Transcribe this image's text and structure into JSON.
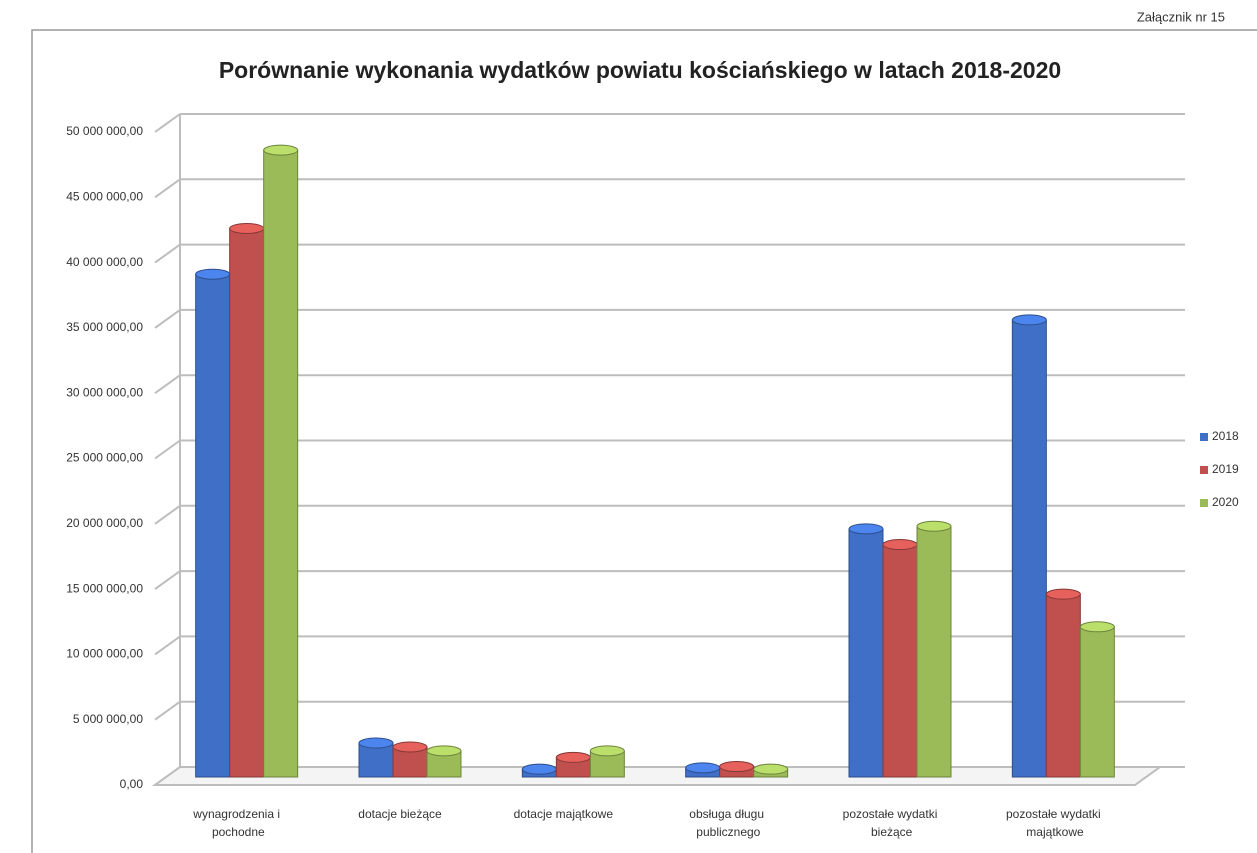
{
  "chart_data": {
    "type": "bar",
    "title": "Porównanie wykonania wydatków powiatu kościańskiego w latach 2018-2020",
    "annotation": "Załącznik nr 15",
    "categories": [
      "wynagrodzenia i pochodne",
      "dotacje bieżące",
      "dotacje majątkowe",
      "obsługa długu publicznego",
      "pozostałe wydatki bieżące",
      "pozostałe wydatki majątkowe"
    ],
    "series": [
      {
        "name": "2018",
        "color": "#3f6fc6",
        "values": [
          38500000,
          2600000,
          600000,
          700000,
          19000000,
          35000000
        ]
      },
      {
        "name": "2019",
        "color": "#c0504d",
        "values": [
          42000000,
          2300000,
          1500000,
          800000,
          17800000,
          14000000
        ]
      },
      {
        "name": "2020",
        "color": "#9bbb59",
        "values": [
          48000000,
          2000000,
          2000000,
          600000,
          19200000,
          11500000
        ]
      }
    ],
    "ylim": [
      0,
      50000000
    ],
    "yticks": [
      {
        "value": 0,
        "label": "0,00"
      },
      {
        "value": 5000000,
        "label": "5 000 000,00"
      },
      {
        "value": 10000000,
        "label": "10 000 000,00"
      },
      {
        "value": 15000000,
        "label": "15 000 000,00"
      },
      {
        "value": 20000000,
        "label": "20 000 000,00"
      },
      {
        "value": 25000000,
        "label": "25 000 000,00"
      },
      {
        "value": 30000000,
        "label": "30 000 000,00"
      },
      {
        "value": 35000000,
        "label": "35 000 000,00"
      },
      {
        "value": 40000000,
        "label": "40 000 000,00"
      },
      {
        "value": 45000000,
        "label": "45 000 000,00"
      },
      {
        "value": 50000000,
        "label": "50 000 000,00"
      }
    ],
    "grid": true,
    "legend": "right"
  }
}
